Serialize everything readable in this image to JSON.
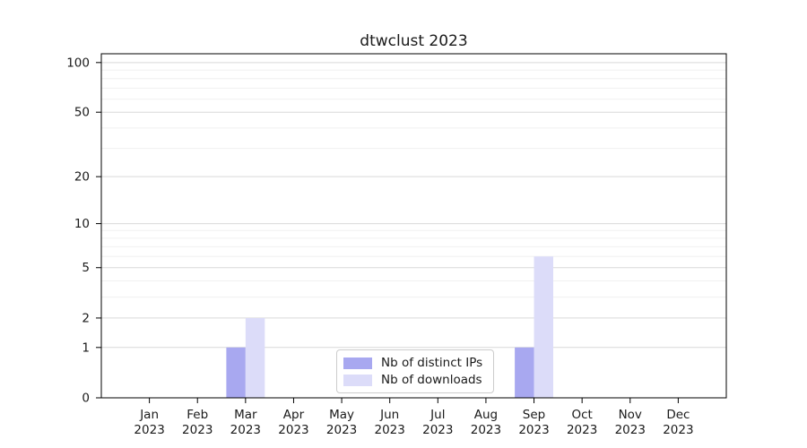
{
  "chart_data": {
    "type": "bar",
    "title": "dtwclust 2023",
    "categories": [
      "Jan 2023",
      "Feb 2023",
      "Mar 2023",
      "Apr 2023",
      "May 2023",
      "Jun 2023",
      "Jul 2023",
      "Aug 2023",
      "Sep 2023",
      "Oct 2023",
      "Nov 2023",
      "Dec 2023"
    ],
    "series": [
      {
        "name": "Nb of distinct IPs",
        "color": "#a8a8f0",
        "values": [
          0,
          0,
          1,
          0,
          0,
          0,
          0,
          0,
          1,
          0,
          0,
          0
        ]
      },
      {
        "name": "Nb of downloads",
        "color": "#dcdcf9",
        "values": [
          0,
          0,
          2,
          0,
          0,
          0,
          0,
          0,
          6,
          0,
          0,
          0
        ]
      }
    ],
    "xlabel": "",
    "ylabel": "",
    "yscale": "log1p",
    "yticks": [
      0,
      1,
      2,
      5,
      10,
      20,
      50,
      100
    ],
    "minor_yticks": [
      3,
      4,
      6,
      7,
      8,
      9,
      30,
      40,
      60,
      70,
      80,
      90
    ],
    "ylim": [
      0,
      113
    ],
    "grid": true,
    "legend_position": "bottom-center",
    "colors": {
      "spine": "#000000",
      "major_grid": "#d9d9d9",
      "minor_grid": "#f0f0f0",
      "tick_text": "#1a1a1a",
      "background": "#ffffff"
    }
  }
}
